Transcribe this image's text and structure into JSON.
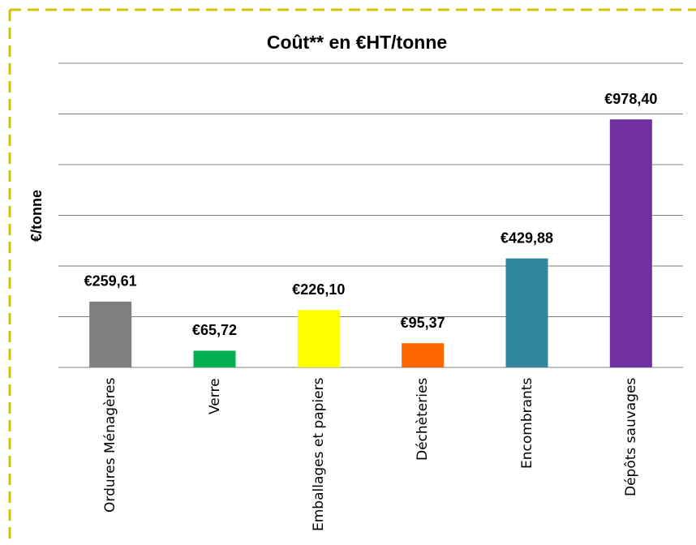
{
  "chart_data": {
    "type": "bar",
    "title": "Coût** en €HT/tonne",
    "ylabel": "€/tonne",
    "categories": [
      "Ordures Ménagères",
      "Verre",
      "Emballages et papiers",
      "Déchèteries",
      "Encombrants",
      "Dépôts sauvages"
    ],
    "values": [
      259.61,
      65.72,
      226.1,
      95.37,
      429.88,
      978.4
    ],
    "value_labels": [
      "€259,61",
      "€65,72",
      "€226,10",
      "€95,37",
      "€429,88",
      "€978,40"
    ],
    "colors": [
      "#7f7f7f",
      "#00b050",
      "#ffff00",
      "#ff6600",
      "#31859c",
      "#7030a0"
    ],
    "ylim": [
      0,
      1200
    ],
    "yticks": [
      0,
      200,
      400,
      600,
      800,
      1000,
      1200
    ],
    "grid": true
  }
}
